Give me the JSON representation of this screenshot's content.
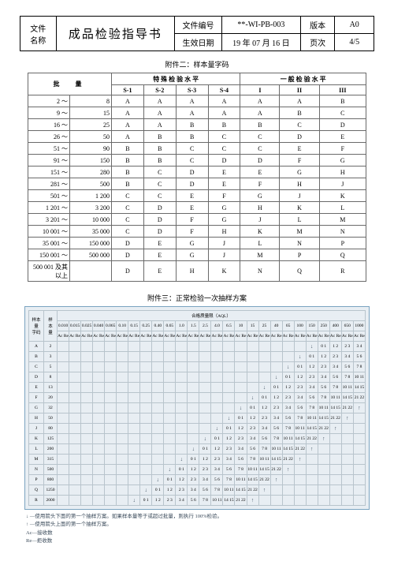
{
  "header": {
    "label_filename": "文件\n名称",
    "doc_title": "成品检验指导书",
    "label_fileno": "文件编号",
    "fileno": "**-WI-PB-003",
    "label_version": "版本",
    "version": "A0",
    "label_eff": "生效日期",
    "eff_date": "19 年 07 月 16 日",
    "label_page": "页次",
    "page": "4/5"
  },
  "section1_title": "附件二：样本量字码",
  "tbl1": {
    "head_batch": "批　量",
    "head_special": "特 殊 检 验 水 平",
    "head_general": "一 般 检 验 水 平",
    "cols_special": [
      "S-1",
      "S-2",
      "S-3",
      "S-4"
    ],
    "cols_general": [
      "I",
      "II",
      "III"
    ],
    "rows": [
      {
        "batch": "2 ～ 8",
        "v": [
          "A",
          "A",
          "A",
          "A",
          "A",
          "A",
          "B"
        ]
      },
      {
        "batch": "9 ～ 15",
        "v": [
          "A",
          "A",
          "A",
          "A",
          "A",
          "B",
          "C"
        ]
      },
      {
        "batch": "16 ～ 25",
        "v": [
          "A",
          "A",
          "B",
          "B",
          "B",
          "C",
          "D"
        ]
      },
      {
        "batch": "26 ～ 50",
        "v": [
          "A",
          "B",
          "B",
          "C",
          "C",
          "D",
          "E"
        ]
      },
      {
        "batch": "51 ～ 90",
        "v": [
          "B",
          "B",
          "C",
          "C",
          "C",
          "E",
          "F"
        ]
      },
      {
        "batch": "91 ～ 150",
        "v": [
          "B",
          "B",
          "C",
          "D",
          "D",
          "F",
          "G"
        ]
      },
      {
        "batch": "151 ～ 280",
        "v": [
          "B",
          "C",
          "D",
          "E",
          "E",
          "G",
          "H"
        ]
      },
      {
        "batch": "281 ～ 500",
        "v": [
          "B",
          "C",
          "D",
          "E",
          "F",
          "H",
          "J"
        ]
      },
      {
        "batch": "501 ～ 1 200",
        "v": [
          "C",
          "C",
          "E",
          "F",
          "G",
          "J",
          "K"
        ]
      },
      {
        "batch": "1 201 ～ 3 200",
        "v": [
          "C",
          "D",
          "E",
          "G",
          "H",
          "K",
          "L"
        ]
      },
      {
        "batch": "3 201 ～ 10 000",
        "v": [
          "C",
          "D",
          "F",
          "G",
          "J",
          "L",
          "M"
        ]
      },
      {
        "batch": "10 001 ～ 35 000",
        "v": [
          "C",
          "D",
          "F",
          "H",
          "K",
          "M",
          "N"
        ]
      },
      {
        "batch": "35 001 ～ 150 000",
        "v": [
          "D",
          "E",
          "G",
          "J",
          "L",
          "N",
          "P"
        ]
      },
      {
        "batch": "150 001 ～ 500 000",
        "v": [
          "D",
          "E",
          "G",
          "J",
          "M",
          "P",
          "Q"
        ]
      },
      {
        "batch": "500 001 及其以上",
        "v": [
          "D",
          "E",
          "H",
          "K",
          "N",
          "Q",
          "R"
        ]
      }
    ]
  },
  "section2_title": "附件三：正常检验一次抽样方案",
  "tbl2": {
    "corner_label": "样本\n量\n字码",
    "size_label": "样\n本\n量",
    "aql_label": "合格质量限（AQL）",
    "aql_cols": [
      "0.010",
      "0.015",
      "0.025",
      "0.040",
      "0.065",
      "0.10",
      "0.15",
      "0.25",
      "0.40",
      "0.65",
      "1.0",
      "1.5",
      "2.5",
      "4.0",
      "6.5",
      "10",
      "15",
      "25",
      "40",
      "65",
      "100",
      "150",
      "250",
      "400",
      "650",
      "1000"
    ],
    "subhead": "Ac Re",
    "codes": [
      "A",
      "B",
      "C",
      "D",
      "E",
      "F",
      "G",
      "H",
      "J",
      "K",
      "L",
      "M",
      "N",
      "P",
      "Q",
      "R"
    ],
    "sizes": [
      "2",
      "3",
      "5",
      "8",
      "13",
      "20",
      "32",
      "50",
      "80",
      "125",
      "200",
      "315",
      "500",
      "800",
      "1250",
      "2000"
    ]
  },
  "legend": {
    "l1": "↓ —使用箭头下面的第一个抽样方案。如果样本量等于或超过批量，则执行 100%检验。",
    "l2": "↑ —使用箭头上面的第一个抽样方案。",
    "l3": "Ac—接收数",
    "l4": "Re—拒收数"
  }
}
